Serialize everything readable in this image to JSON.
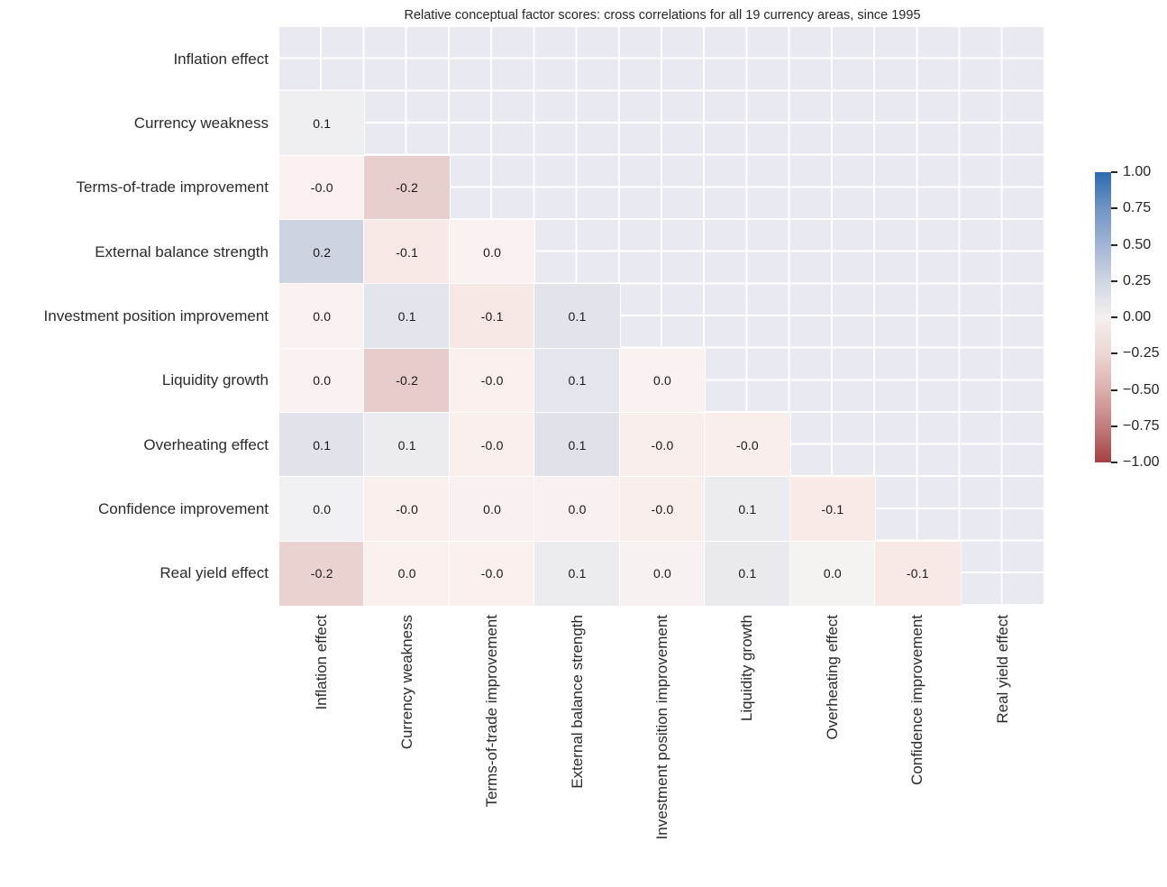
{
  "title": "Relative conceptual factor scores: cross correlations for all 19 currency areas, since 1995",
  "colors": {
    "background": "#ffffff",
    "masked_cell_bg": "#e9e9f1",
    "grid_line": "#ffffff",
    "text": "#262626",
    "annotation_text": "#1a1a1a",
    "colorbar_gradient_stops": [
      "#2e6ab1",
      "#7095c6",
      "#a2b4d4",
      "#cfd6e4",
      "#f3f0ef",
      "#edd6d3",
      "#dcaeab",
      "#c27e7e",
      "#a53f42"
    ]
  },
  "chart_data": {
    "type": "heatmap",
    "title": "Relative conceptual factor scores: cross correlations for all 19 currency areas, since 1995",
    "mask": "upper triangle including diagonal",
    "grid": true,
    "row_labels": [
      "Inflation effect",
      "Currency weakness",
      "Terms-of-trade improvement",
      "External balance strength",
      "Investment position improvement",
      "Liquidity growth",
      "Overheating effect",
      "Confidence improvement",
      "Real yield effect"
    ],
    "col_labels": [
      "Inflation effect",
      "Currency weakness",
      "Terms-of-trade improvement",
      "External balance strength",
      "Investment position improvement",
      "Liquidity growth",
      "Overheating effect",
      "Confidence improvement",
      "Real yield effect"
    ],
    "values": [
      [
        null,
        null,
        null,
        null,
        null,
        null,
        null,
        null,
        null
      ],
      [
        0.1,
        null,
        null,
        null,
        null,
        null,
        null,
        null,
        null
      ],
      [
        -0.0,
        -0.2,
        null,
        null,
        null,
        null,
        null,
        null,
        null
      ],
      [
        0.2,
        -0.1,
        0.0,
        null,
        null,
        null,
        null,
        null,
        null
      ],
      [
        0.0,
        0.1,
        -0.1,
        0.1,
        null,
        null,
        null,
        null,
        null
      ],
      [
        0.0,
        -0.2,
        -0.0,
        0.1,
        0.0,
        null,
        null,
        null,
        null
      ],
      [
        0.1,
        0.1,
        -0.0,
        0.1,
        -0.0,
        -0.0,
        null,
        null,
        null
      ],
      [
        0.0,
        -0.0,
        0.0,
        0.0,
        -0.0,
        0.1,
        -0.1,
        null,
        null
      ],
      [
        -0.2,
        0.0,
        -0.0,
        0.1,
        0.0,
        0.1,
        0.0,
        -0.1,
        null
      ]
    ],
    "cells": [
      {
        "row": "Inflation effect",
        "entries": []
      },
      {
        "row": "Currency weakness",
        "entries": [
          {
            "label": "0.1",
            "color": "#efeff2"
          }
        ]
      },
      {
        "row": "Terms-of-trade improvement",
        "entries": [
          {
            "label": "-0.0",
            "color": "#faf1f0"
          },
          {
            "label": "-0.2",
            "color": "#e8cfcd"
          }
        ]
      },
      {
        "row": "External balance strength",
        "entries": [
          {
            "label": "0.2",
            "color": "#cdd3e0"
          },
          {
            "label": "-0.1",
            "color": "#f8e8e6"
          },
          {
            "label": "0.0",
            "color": "#faf2f0"
          }
        ]
      },
      {
        "row": "Investment position improvement",
        "entries": [
          {
            "label": "0.0",
            "color": "#faf2f0"
          },
          {
            "label": "0.1",
            "color": "#e3e5ec"
          },
          {
            "label": "-0.1",
            "color": "#f7e7e5"
          },
          {
            "label": "0.1",
            "color": "#e3e4eb"
          }
        ]
      },
      {
        "row": "Liquidity growth",
        "entries": [
          {
            "label": "0.0",
            "color": "#faf2f0"
          },
          {
            "label": "-0.2",
            "color": "#e7cccb"
          },
          {
            "label": "-0.0",
            "color": "#faf0ee"
          },
          {
            "label": "0.1",
            "color": "#e5e6ed"
          },
          {
            "label": "0.0",
            "color": "#f9f2f1"
          }
        ]
      },
      {
        "row": "Overheating effect",
        "entries": [
          {
            "label": "0.1",
            "color": "#e2e3ea"
          },
          {
            "label": "0.1",
            "color": "#ebebf0"
          },
          {
            "label": "-0.0",
            "color": "#f9efed"
          },
          {
            "label": "0.1",
            "color": "#e1e2e9"
          },
          {
            "label": "-0.0",
            "color": "#f9eeec"
          },
          {
            "label": "-0.0",
            "color": "#f8eeec"
          }
        ]
      },
      {
        "row": "Confidence improvement",
        "entries": [
          {
            "label": "0.0",
            "color": "#f1f0f3"
          },
          {
            "label": "-0.0",
            "color": "#f9efed"
          },
          {
            "label": "0.0",
            "color": "#f8f1ef"
          },
          {
            "label": "0.0",
            "color": "#f8f1ef"
          },
          {
            "label": "-0.0",
            "color": "#f8eeec"
          },
          {
            "label": "0.1",
            "color": "#ebebf0"
          },
          {
            "label": "-0.1",
            "color": "#f9e9e7"
          }
        ]
      },
      {
        "row": "Real yield effect",
        "entries": [
          {
            "label": "-0.2",
            "color": "#e9d2d0"
          },
          {
            "label": "0.0",
            "color": "#faf1ef"
          },
          {
            "label": "-0.0",
            "color": "#faf0ee"
          },
          {
            "label": "0.1",
            "color": "#ebebf0"
          },
          {
            "label": "0.0",
            "color": "#f7f2f1"
          },
          {
            "label": "0.1",
            "color": "#e9e9ee"
          },
          {
            "label": "0.0",
            "color": "#f4f3f2"
          },
          {
            "label": "-0.1",
            "color": "#f8e9e7"
          }
        ]
      }
    ],
    "colorbar": {
      "range": [
        -1.0,
        1.0
      ],
      "tick_labels": [
        "1.00",
        "0.75",
        "0.50",
        "0.25",
        "0.00",
        "−0.25",
        "−0.50",
        "−0.75",
        "−1.00"
      ],
      "position": "right"
    }
  }
}
